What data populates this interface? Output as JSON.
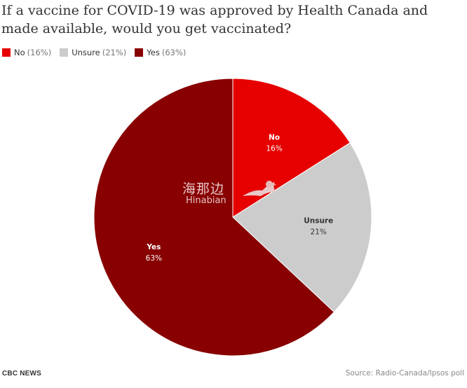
{
  "title": "If a vaccine for COVID-19 was approved by Health Canada and made available, would you get vaccinated?",
  "legend": [
    {
      "label": "No",
      "pct": "(16%)",
      "color": "#e60000"
    },
    {
      "label": "Unsure",
      "pct": "(21%)",
      "color": "#cccccc"
    },
    {
      "label": "Yes",
      "pct": "(63%)",
      "color": "#880000"
    }
  ],
  "watermark": {
    "chinese": "海那边",
    "english": "Hinabian"
  },
  "footer": {
    "brand": "CBC NEWS",
    "source": "Source: Radio-Canada/Ipsos poll"
  },
  "chart_data": {
    "type": "pie",
    "title": "If a vaccine for COVID-19 was approved by Health Canada and made available, would you get vaccinated?",
    "categories": [
      "No",
      "Unsure",
      "Yes"
    ],
    "values": [
      16,
      21,
      63
    ],
    "value_labels": [
      "16%",
      "21%",
      "63%"
    ],
    "colors": [
      "#e60000",
      "#cccccc",
      "#880000"
    ],
    "label_colors": [
      "#ffffff",
      "#333333",
      "#ffffff"
    ],
    "start_angle_deg": 0,
    "direction": "clockwise",
    "legend_position": "top-left"
  }
}
